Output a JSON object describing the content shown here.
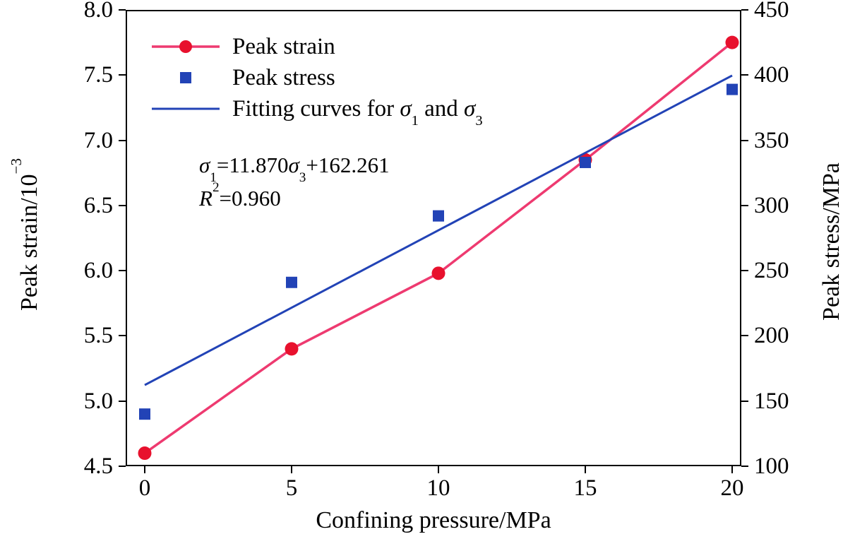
{
  "chart_data": {
    "type": "line",
    "title": "",
    "xlabel": "Confining pressure/MPa",
    "ylabel_left": {
      "main": "Peak strain/10",
      "sup": "−3"
    },
    "ylabel_right": "Peak stress/MPa",
    "xlim_display": [
      0,
      20
    ],
    "ylim_left": [
      4.5,
      8.0
    ],
    "ylim_right": [
      100,
      450
    ],
    "grid": false,
    "legend_position": "top-left-inside",
    "x_ticks": [
      0,
      5,
      10,
      15,
      20
    ],
    "x_tick_labels": [
      "0",
      "5",
      "10",
      "15",
      "20"
    ],
    "y_left_ticks": [
      4.5,
      5.0,
      5.5,
      6.0,
      6.5,
      7.0,
      7.5,
      8.0
    ],
    "y_left_tick_labels": [
      "4.5",
      "5.0",
      "5.5",
      "6.0",
      "6.5",
      "7.0",
      "7.5",
      "8.0"
    ],
    "y_right_ticks": [
      100,
      150,
      200,
      250,
      300,
      350,
      400,
      450
    ],
    "y_right_tick_labels": [
      "100",
      "150",
      "200",
      "250",
      "300",
      "350",
      "400",
      "450"
    ],
    "series": [
      {
        "name": "Peak strain",
        "axis": "left",
        "type": "line+marker",
        "marker": "circle",
        "line_color": "#ee3a70",
        "marker_color": "#e8112d",
        "x": [
          0,
          5,
          10,
          15,
          20
        ],
        "y": [
          4.6,
          5.4,
          5.98,
          6.85,
          7.75
        ]
      },
      {
        "name": "Peak stress",
        "axis": "right",
        "type": "marker",
        "marker": "square",
        "marker_color": "#2243b6",
        "x": [
          0,
          5,
          10,
          15,
          20
        ],
        "y": [
          140,
          241,
          292,
          333,
          389
        ]
      },
      {
        "name": "Fitting line",
        "axis": "right",
        "type": "fit-line",
        "line_color": "#2243b6",
        "slope": 11.87,
        "intercept": 162.261,
        "x_range": [
          0,
          20
        ]
      }
    ],
    "legend": {
      "item1": {
        "label": "Peak strain"
      },
      "item2": {
        "label": "Peak stress"
      },
      "item3": {
        "prefix": "Fitting curves for ",
        "sigma_a": "σ",
        "sub_a": "1",
        "mid": " and ",
        "sigma_b": "σ",
        "sub_b": "3"
      }
    },
    "annotation": {
      "equation": {
        "sigma_a": "σ",
        "sub_a": "1",
        "mid": "=11.870",
        "sigma_b": "σ",
        "sub_b": "3",
        "tail": "+162.261"
      },
      "r_squared": {
        "base": "R",
        "sup": "2",
        "rest": "=0.960"
      }
    },
    "colors": {
      "strain_line": "#ee3a70",
      "strain_marker": "#e8112d",
      "stress_blue": "#2243b6",
      "axis": "#000000"
    }
  }
}
